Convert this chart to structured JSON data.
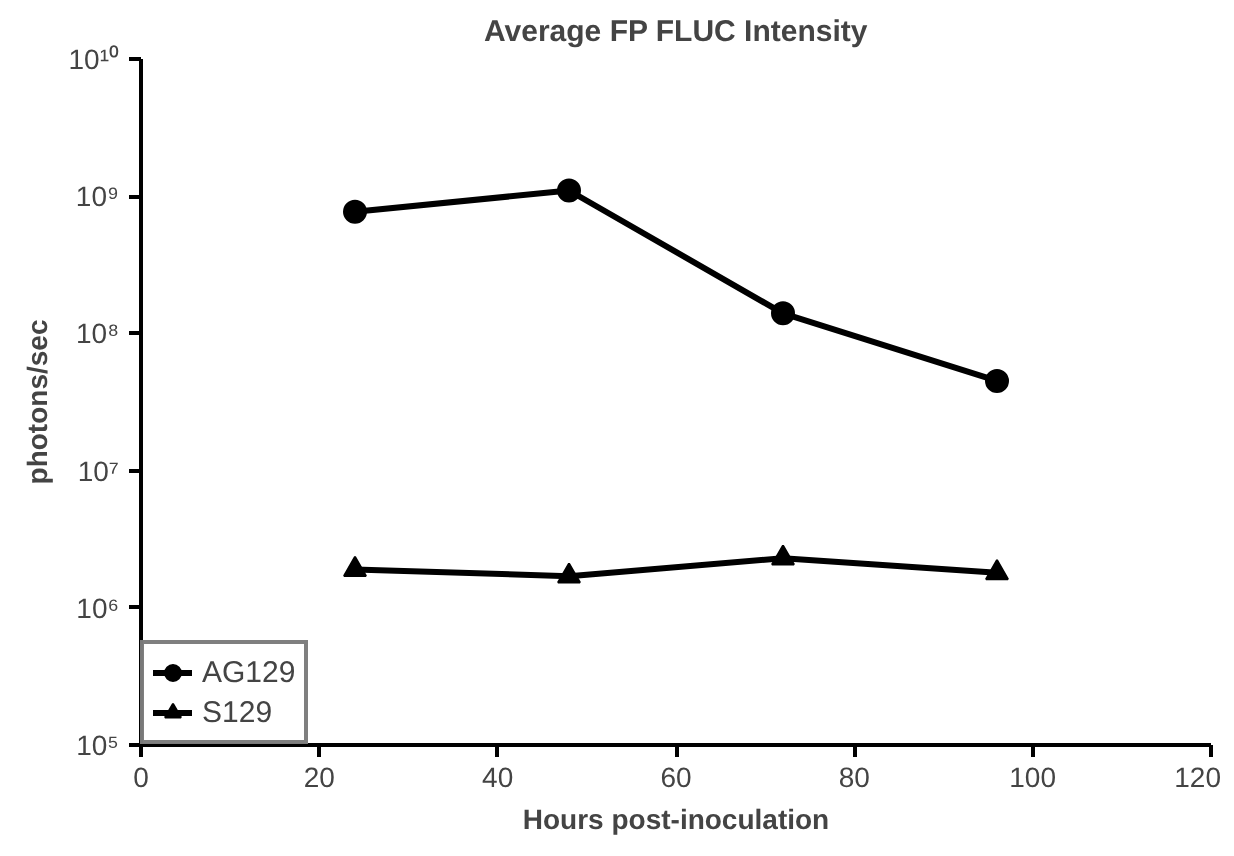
{
  "chart_data": {
    "type": "line",
    "title": "Average FP FLUC Intensity",
    "xlabel": "Hours post-inoculation",
    "ylabel": "photons/sec",
    "x": [
      24,
      48,
      72,
      96
    ],
    "series": [
      {
        "name": "AG129",
        "color": "#000000",
        "marker": "circle",
        "values": [
          770000000,
          1100000000,
          140000000,
          45000000
        ]
      },
      {
        "name": "S129",
        "color": "#000000",
        "marker": "triangle",
        "values": [
          1900000,
          1700000,
          2300000,
          1800000
        ]
      }
    ],
    "xlim": [
      0,
      120
    ],
    "xticks": [
      0,
      20,
      40,
      60,
      80,
      100,
      120
    ],
    "ylim": [
      100000,
      10000000000
    ],
    "yticks": [
      {
        "value": 100000,
        "label": "10⁵"
      },
      {
        "value": 1000000,
        "label": "10⁶"
      },
      {
        "value": 10000000,
        "label": "10⁷"
      },
      {
        "value": 100000000,
        "label": "10⁸"
      },
      {
        "value": 1000000000,
        "label": "10⁹"
      },
      {
        "value": 10000000000,
        "label": "10¹⁰"
      }
    ],
    "log": "y",
    "grid": false,
    "legend": "bottom left",
    "line_style": "solid"
  }
}
